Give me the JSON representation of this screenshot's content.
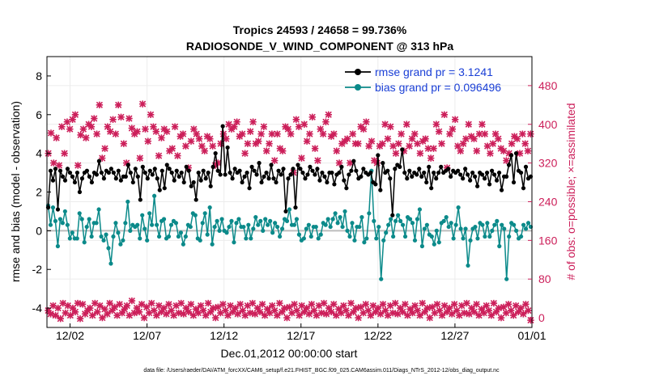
{
  "chart_data": {
    "type": "line",
    "title": "Tropics 24593 / 24658 = 99.736%",
    "subtitle": "RADIOSONDE_V_WIND_COMPONENT @ 313 hPa",
    "xlabel": "Dec.01,2012 00:00:00 start",
    "ylabel": "rmse and bias (model - observation)",
    "ylabel_right": "# of obs: o=possible; ×=assimilated",
    "xlim": [
      0,
      31.5
    ],
    "ylim": [
      -5,
      9
    ],
    "ylim_right": [
      -20,
      540
    ],
    "x_ticks": [
      {
        "value": 1.5,
        "label": "12/02"
      },
      {
        "value": 6.5,
        "label": "12/07"
      },
      {
        "value": 11.5,
        "label": "12/12"
      },
      {
        "value": 16.5,
        "label": "12/17"
      },
      {
        "value": 21.5,
        "label": "12/22"
      },
      {
        "value": 26.5,
        "label": "12/27"
      },
      {
        "value": 31.5,
        "label": "01/01"
      }
    ],
    "y_ticks": [
      -4,
      -2,
      0,
      2,
      4,
      6,
      8
    ],
    "y_ticks_right": [
      0,
      80,
      160,
      240,
      320,
      400,
      480
    ],
    "footer": "data file: /Users/raeder/DAI/ATM_forcXX/CAM6_setup/f.e21.FHIST_BGC.f09_025.CAM6assim.011/Diags_NTrS_2012-12/obs_diag_output.nc",
    "colors": {
      "rmse": "#000000",
      "bias": "#0b8a8a",
      "obs": "#cc1f5a",
      "zero": "#bdbdbd"
    },
    "series": [
      {
        "name": "rmse",
        "legend": "rmse grand pr = 3.1241",
        "values": [
          1.2,
          3.1,
          2.6,
          3.2,
          1.1,
          3.1,
          2.8,
          2.6,
          3.2,
          3.0,
          2.8,
          2.5,
          3.0,
          2.0,
          2.7,
          3.0,
          3.1,
          2.8,
          2.5,
          3.0,
          2.9,
          3.6,
          3.0,
          2.7,
          3.1,
          3.0,
          3.2,
          3.0,
          2.7,
          3.1,
          2.6,
          2.8,
          2.8,
          3.4,
          3.0,
          2.5,
          3.2,
          2.8,
          1.6,
          3.3,
          3.0,
          2.7,
          3.1,
          2.9,
          3.2,
          2.7,
          2.1,
          3.1,
          2.2,
          3.4,
          3.2,
          3.0,
          2.6,
          3.1,
          2.8,
          3.0,
          2.5,
          3.3,
          3.1,
          2.3,
          2.5,
          1.6,
          3.0,
          2.6,
          3.1,
          2.7,
          3.0,
          2.3,
          3.3,
          4.0,
          3.1,
          2.9,
          5.4,
          2.9,
          4.3,
          3.0,
          2.7,
          3.2,
          3.0,
          3.1,
          2.5,
          2.8,
          3.0,
          2.2,
          3.3,
          3.1,
          2.9,
          3.5,
          2.5,
          2.8,
          3.0,
          2.7,
          3.4,
          2.7,
          2.5,
          3.1,
          2.9,
          3.2,
          1.0,
          2.7,
          2.9,
          3.2,
          1.2,
          3.4,
          3.2,
          3.0,
          2.7,
          2.9,
          3.3,
          3.1,
          2.9,
          3.2,
          2.6,
          3.0,
          2.8,
          2.5,
          3.0,
          3.0,
          2.4,
          2.9,
          3.0,
          3.3,
          2.6,
          2.2,
          2.9,
          3.1,
          3.6,
          3.1,
          2.7,
          2.8,
          3.2,
          3.0,
          2.9,
          3.0,
          2.5,
          2.4,
          3.9,
          2.1,
          3.5,
          3.0,
          3.1,
          2.7,
          0.8,
          3.2,
          3.4,
          3.3,
          4.2,
          3.0,
          2.7,
          3.1,
          2.8,
          3.0,
          2.9,
          3.2,
          2.8,
          3.0,
          2.5,
          3.3,
          2.2,
          3.0,
          2.7,
          3.0,
          3.3,
          3.0,
          3.1,
          3.2,
          2.8,
          3.1,
          3.0,
          3.1,
          2.9,
          2.7,
          3.2,
          2.9,
          2.6,
          3.0,
          2.8,
          2.3,
          3.0,
          2.9,
          2.7,
          3.0,
          2.4,
          3.1,
          2.9,
          2.6,
          3.0,
          2.1,
          2.8,
          2.8,
          3.4,
          3.9,
          2.5,
          4.0,
          3.1,
          3.0,
          2.2,
          3.3,
          2.7,
          2.8
        ]
      },
      {
        "name": "bias",
        "legend": "bias grand pr = 0.096496",
        "values": [
          1.3,
          0.3,
          1.2,
          0.5,
          -0.8,
          0.6,
          0.4,
          1.0,
          0.3,
          -0.4,
          -0.1,
          -0.4,
          -0.4,
          0.9,
          0.6,
          -0.6,
          0.2,
          0.6,
          -0.3,
          0.4,
          0.4,
          1.1,
          -0.3,
          -0.5,
          -0.2,
          -0.9,
          -1.7,
          -0.3,
          0.4,
          -0.1,
          -0.7,
          -0.5,
          0.4,
          1.5,
          0.0,
          0.3,
          0.2,
          0.3,
          -0.4,
          0.8,
          0.1,
          -0.5,
          0.9,
          0.3,
          1.8,
          0.3,
          -0.3,
          0.5,
          0.6,
          -0.4,
          -0.3,
          0.3,
          0.5,
          0.4,
          -0.3,
          -0.1,
          -0.7,
          -0.3,
          0.3,
          0.2,
          0.9,
          0.8,
          -0.4,
          -0.5,
          0.4,
          0.9,
          -0.2,
          1.2,
          -0.7,
          0.2,
          0.5,
          0.0,
          0.6,
          0.0,
          -0.1,
          0.2,
          0.5,
          -0.6,
          0.4,
          0.6,
          0.2,
          0.2,
          -0.4,
          0.3,
          -0.4,
          0.1,
          0.7,
          0.3,
          0.5,
          0.0,
          0.6,
          0.3,
          0.5,
          -0.1,
          0.4,
          0.2,
          -0.3,
          0.1,
          0.6,
          0.5,
          1.1,
          0.3,
          0.3,
          0.6,
          -0.2,
          -0.5,
          -0.4,
          0.1,
          0.3,
          -0.3,
          0.2,
          0.2,
          -0.4,
          -0.2,
          0.4,
          0.3,
          0.6,
          0.2,
          0.6,
          0.9,
          0.4,
          0.7,
          0.2,
          1.0,
          0.0,
          -0.3,
          0.4,
          -0.5,
          0.2,
          0.2,
          0.7,
          -0.6,
          -0.4,
          0.9,
          3.1,
          0.5,
          -0.4,
          0.2,
          -2.5,
          -0.5,
          -0.1,
          0.3,
          0.6,
          -0.3,
          0.5,
          0.8,
          0.5,
          0.3,
          -0.3,
          0.7,
          0.6,
          0.4,
          -0.5,
          0.6,
          1.1,
          -0.8,
          0.1,
          0.3,
          -0.2,
          -0.3,
          -0.7,
          0.0,
          -0.6,
          0.4,
          0.5,
          0.7,
          0.2,
          0.4,
          -0.4,
          0.3,
          1.2,
          0.1,
          -0.4,
          0.1,
          -1.8,
          -0.5,
          0.1,
          0.2,
          -0.4,
          0.4,
          0.3,
          -0.3,
          0.4,
          -0.3,
          0.0,
          0.3,
          0.5,
          -0.8,
          0.3,
          0.1,
          -2.5,
          -0.3,
          0.4,
          0.3,
          0.0,
          -0.4,
          -0.3,
          0.3,
          0.1,
          0.4,
          0.2
        ]
      },
      {
        "name": "obs_possible",
        "legend": "",
        "values": [
          340,
          382,
          320,
          372,
          315,
          395,
          340,
          405,
          390,
          410,
          420,
          315,
          378,
          390,
          372,
          400,
          395,
          412,
          380,
          440,
          330,
          350,
          395,
          385,
          410,
          380,
          440,
          415,
          360,
          320,
          412,
          392,
          380,
          385,
          330,
          442,
          390,
          365,
          420,
          395,
          385,
          335,
          372,
          390,
          385,
          345,
          350,
          395,
          335,
          375,
          380,
          355,
          310,
          365,
          390,
          380,
          370,
          355,
          345,
          375,
          370,
          355,
          315,
          320,
          360,
          380,
          370,
          400,
          390,
          395,
          405,
          375,
          380,
          340,
          360,
          385,
          405,
          360,
          365,
          380,
          395,
          345,
          360,
          380,
          325,
          380,
          350,
          345,
          395,
          390,
          380,
          300,
          410,
          395,
          330,
          400,
          365,
          380,
          415,
          350,
          325,
          390,
          380,
          405,
          420,
          375,
          380,
          345,
          320,
          360,
          365,
          370,
          320,
          380,
          360,
          360,
          395,
          390,
          405,
          355,
          365,
          325,
          320,
          355,
          360,
          400,
          370,
          395,
          355,
          340,
          360,
          380,
          345,
          400,
          355,
          370,
          380,
          360,
          340,
          365,
          370,
          350,
          330,
          350,
          400,
          385,
          360,
          420,
          310,
          380,
          390,
          410,
          355,
          345,
          360,
          370,
          400,
          375,
          370,
          345,
          380,
          400,
          380,
          355,
          340,
          360,
          380,
          370,
          350,
          345,
          325,
          340,
          360,
          375,
          370,
          340,
          380,
          360,
          345,
          380
        ]
      },
      {
        "name": "obs_assimilated",
        "legend": "",
        "values": [
          15,
          8,
          25,
          5,
          20,
          -2,
          30,
          10,
          25,
          5,
          20,
          12,
          30,
          -2,
          28,
          8,
          15,
          20,
          5,
          30,
          12,
          25,
          0,
          18,
          8,
          30,
          15,
          22,
          5,
          28,
          10,
          18,
          25,
          5,
          35,
          10,
          20,
          12,
          28,
          0,
          22,
          10,
          30,
          15,
          5,
          25,
          12,
          20,
          8,
          28,
          15,
          5,
          25,
          10,
          30,
          8,
          20,
          12,
          28,
          5,
          18,
          10,
          25,
          15,
          5,
          30,
          12,
          20,
          0,
          22,
          10,
          28,
          15,
          5,
          25,
          12,
          20,
          8,
          28,
          15,
          5,
          25,
          10,
          30,
          8,
          20,
          12,
          28,
          5,
          18,
          10,
          25,
          15,
          5,
          30,
          12,
          20,
          0,
          22,
          10,
          28,
          15,
          5,
          25,
          12,
          20,
          8,
          28,
          15,
          5,
          25,
          10,
          30,
          8,
          20,
          12,
          28,
          5,
          18,
          10,
          25,
          15,
          5,
          30,
          12,
          20,
          0,
          22,
          10,
          28,
          15,
          5,
          25,
          12,
          20,
          8,
          28,
          15,
          5,
          25,
          10,
          30,
          8,
          20,
          12,
          28,
          5,
          18,
          10,
          25,
          15,
          5,
          30,
          12,
          20,
          0,
          22,
          10,
          28,
          15,
          5,
          25,
          12,
          20,
          8,
          28,
          15,
          5,
          25,
          10,
          30,
          8,
          20,
          12,
          28,
          5,
          18,
          10,
          25,
          15,
          5,
          30,
          12,
          20,
          0,
          22,
          10,
          28,
          15,
          5,
          25,
          12,
          20,
          8,
          28,
          15,
          -5
        ]
      }
    ]
  }
}
